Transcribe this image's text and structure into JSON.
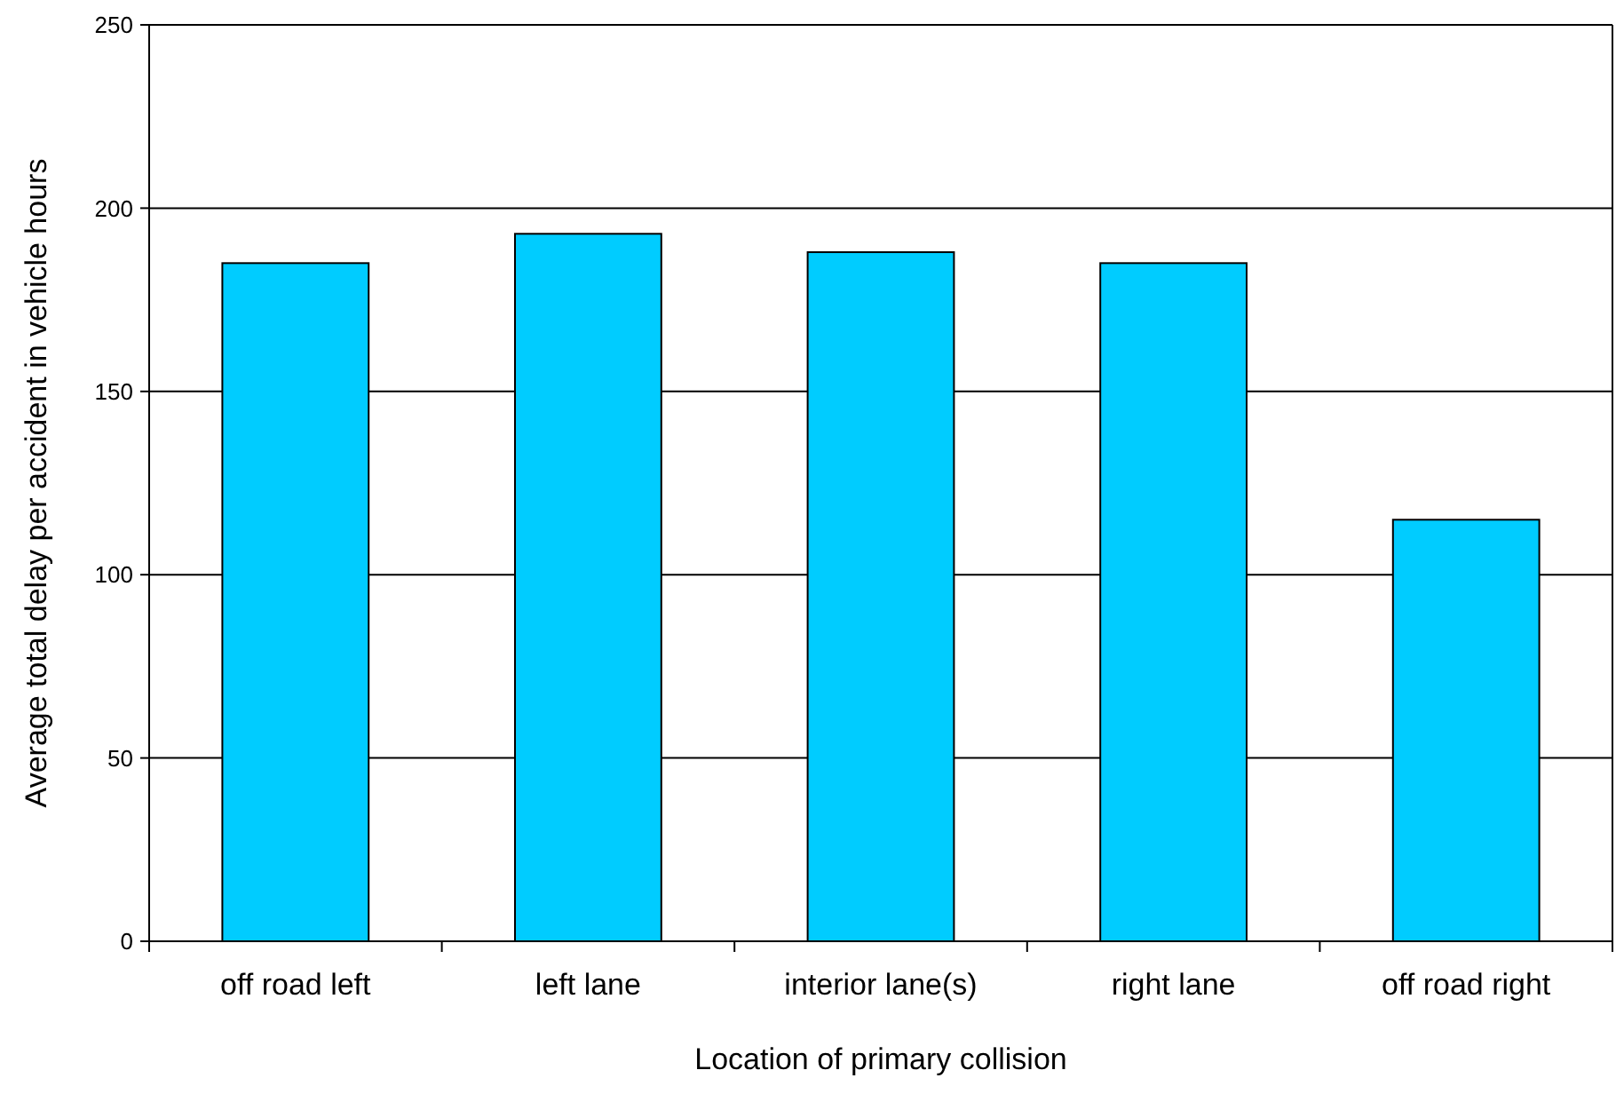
{
  "chart_data": {
    "type": "bar",
    "xlabel": "Location of primary collision",
    "ylabel": "Average total delay per accident in vehicle hours",
    "categories": [
      "off road left",
      "left lane",
      "interior lane(s)",
      "right lane",
      "off road right"
    ],
    "values": [
      185,
      193,
      188,
      185,
      115
    ],
    "color": "#00ccff",
    "ylim": [
      0,
      250
    ],
    "yticks": [
      0,
      50,
      100,
      150,
      200,
      250
    ],
    "grid": "y"
  }
}
